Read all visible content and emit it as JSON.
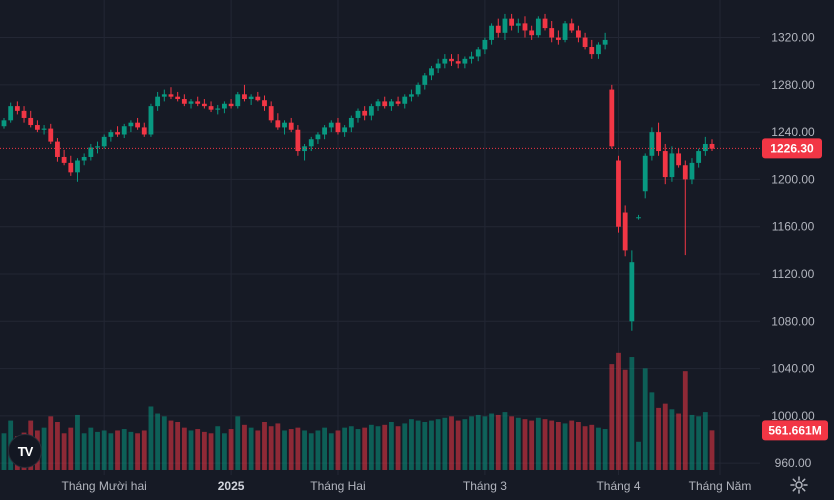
{
  "colors": {
    "background": "#161a25",
    "grid": "#232734",
    "up": "#089981",
    "down": "#f23645",
    "axis_text": "#b2b5be"
  },
  "logo_text": "TV",
  "price_axis": {
    "ticks": [
      960,
      1000,
      1040,
      1080,
      1120,
      1160,
      1200,
      1240,
      1280,
      1320
    ],
    "tick_labels": [
      "960.00",
      "1000.00",
      "1040.00",
      "1080.00",
      "1120.00",
      "1160.00",
      "1200.00",
      "1240.00",
      "1280.00",
      "1320.00"
    ]
  },
  "time_axis": {
    "labels": [
      {
        "text": "Tháng Mười hai",
        "bold": false
      },
      {
        "text": "2025",
        "bold": true
      },
      {
        "text": "Tháng Hai",
        "bold": false
      },
      {
        "text": "Tháng 3",
        "bold": false
      },
      {
        "text": "Tháng 4",
        "bold": false
      },
      {
        "text": "Tháng Năm",
        "bold": false
      }
    ]
  },
  "last_price_label": "1226.30",
  "volume_label": "561.661M",
  "chart_data": {
    "type": "candlestick",
    "ylim": [
      950,
      1345
    ],
    "last_price": 1226.3,
    "last_volume_millions": 561.661,
    "candles": [
      [
        1245,
        1252,
        1243,
        1250,
        520
      ],
      [
        1250,
        1265,
        1248,
        1262,
        700
      ],
      [
        1262,
        1266,
        1255,
        1258,
        480
      ],
      [
        1258,
        1262,
        1248,
        1252,
        530
      ],
      [
        1252,
        1258,
        1244,
        1246,
        700
      ],
      [
        1246,
        1250,
        1240,
        1242,
        560
      ],
      [
        1242,
        1246,
        1238,
        1243,
        600
      ],
      [
        1243,
        1247,
        1230,
        1232,
        760
      ],
      [
        1232,
        1235,
        1215,
        1219,
        680
      ],
      [
        1219,
        1225,
        1212,
        1214,
        520
      ],
      [
        1214,
        1220,
        1203,
        1206,
        600
      ],
      [
        1206,
        1218,
        1198,
        1216,
        780
      ],
      [
        1216,
        1222,
        1212,
        1219,
        520
      ],
      [
        1219,
        1230,
        1216,
        1227,
        600
      ],
      [
        1227,
        1232,
        1222,
        1228,
        540
      ],
      [
        1228,
        1238,
        1226,
        1236,
        560
      ],
      [
        1236,
        1242,
        1232,
        1240,
        520
      ],
      [
        1240,
        1245,
        1236,
        1238,
        560
      ],
      [
        1238,
        1247,
        1235,
        1245,
        580
      ],
      [
        1245,
        1250,
        1240,
        1248,
        540
      ],
      [
        1248,
        1252,
        1242,
        1244,
        520
      ],
      [
        1244,
        1248,
        1236,
        1238,
        560
      ],
      [
        1238,
        1264,
        1236,
        1262,
        900
      ],
      [
        1262,
        1274,
        1258,
        1270,
        800
      ],
      [
        1270,
        1276,
        1266,
        1272,
        760
      ],
      [
        1272,
        1278,
        1268,
        1270,
        700
      ],
      [
        1270,
        1274,
        1266,
        1268,
        680
      ],
      [
        1268,
        1272,
        1262,
        1264,
        600
      ],
      [
        1264,
        1268,
        1260,
        1266,
        560
      ],
      [
        1266,
        1270,
        1262,
        1264,
        580
      ],
      [
        1264,
        1268,
        1260,
        1262,
        540
      ],
      [
        1262,
        1266,
        1257,
        1259,
        520
      ],
      [
        1259,
        1263,
        1255,
        1260,
        620
      ],
      [
        1260,
        1266,
        1256,
        1264,
        520
      ],
      [
        1264,
        1268,
        1260,
        1262,
        580
      ],
      [
        1262,
        1274,
        1260,
        1272,
        760
      ],
      [
        1272,
        1280,
        1266,
        1268,
        640
      ],
      [
        1268,
        1272,
        1263,
        1270,
        600
      ],
      [
        1270,
        1274,
        1266,
        1267,
        560
      ],
      [
        1267,
        1271,
        1258,
        1262,
        680
      ],
      [
        1262,
        1266,
        1248,
        1250,
        620
      ],
      [
        1250,
        1256,
        1242,
        1244,
        660
      ],
      [
        1244,
        1250,
        1238,
        1248,
        560
      ],
      [
        1248,
        1252,
        1240,
        1242,
        580
      ],
      [
        1242,
        1246,
        1220,
        1224,
        600
      ],
      [
        1224,
        1230,
        1216,
        1228,
        560
      ],
      [
        1228,
        1236,
        1224,
        1234,
        520
      ],
      [
        1234,
        1240,
        1230,
        1238,
        560
      ],
      [
        1238,
        1246,
        1234,
        1244,
        600
      ],
      [
        1244,
        1250,
        1240,
        1248,
        520
      ],
      [
        1248,
        1252,
        1238,
        1240,
        560
      ],
      [
        1240,
        1246,
        1236,
        1244,
        600
      ],
      [
        1244,
        1254,
        1240,
        1252,
        620
      ],
      [
        1252,
        1260,
        1248,
        1258,
        580
      ],
      [
        1258,
        1262,
        1250,
        1254,
        600
      ],
      [
        1254,
        1264,
        1250,
        1262,
        640
      ],
      [
        1262,
        1268,
        1258,
        1266,
        620
      ],
      [
        1266,
        1270,
        1260,
        1262,
        640
      ],
      [
        1262,
        1268,
        1258,
        1266,
        680
      ],
      [
        1266,
        1270,
        1262,
        1264,
        620
      ],
      [
        1264,
        1272,
        1260,
        1270,
        660
      ],
      [
        1270,
        1276,
        1266,
        1272,
        720
      ],
      [
        1272,
        1282,
        1270,
        1280,
        700
      ],
      [
        1280,
        1290,
        1276,
        1288,
        680
      ],
      [
        1288,
        1296,
        1284,
        1294,
        700
      ],
      [
        1294,
        1302,
        1290,
        1298,
        720
      ],
      [
        1298,
        1306,
        1294,
        1302,
        740
      ],
      [
        1302,
        1306,
        1296,
        1300,
        760
      ],
      [
        1300,
        1306,
        1294,
        1298,
        700
      ],
      [
        1298,
        1304,
        1294,
        1302,
        720
      ],
      [
        1302,
        1308,
        1298,
        1304,
        760
      ],
      [
        1304,
        1312,
        1300,
        1310,
        780
      ],
      [
        1310,
        1320,
        1306,
        1318,
        760
      ],
      [
        1318,
        1332,
        1314,
        1330,
        800
      ],
      [
        1330,
        1336,
        1320,
        1324,
        780
      ],
      [
        1324,
        1340,
        1318,
        1336,
        820
      ],
      [
        1336,
        1340,
        1326,
        1330,
        760
      ],
      [
        1330,
        1336,
        1324,
        1332,
        740
      ],
      [
        1332,
        1338,
        1320,
        1326,
        720
      ],
      [
        1326,
        1330,
        1318,
        1322,
        700
      ],
      [
        1322,
        1338,
        1320,
        1336,
        740
      ],
      [
        1336,
        1340,
        1326,
        1328,
        720
      ],
      [
        1328,
        1334,
        1316,
        1320,
        700
      ],
      [
        1320,
        1326,
        1314,
        1318,
        680
      ],
      [
        1318,
        1334,
        1316,
        1332,
        660
      ],
      [
        1332,
        1336,
        1324,
        1326,
        700
      ],
      [
        1326,
        1330,
        1316,
        1320,
        680
      ],
      [
        1320,
        1324,
        1310,
        1312,
        620
      ],
      [
        1312,
        1318,
        1302,
        1306,
        640
      ],
      [
        1306,
        1316,
        1302,
        1314,
        600
      ],
      [
        1314,
        1324,
        1310,
        1318,
        580
      ],
      [
        1276,
        1280,
        1226,
        1228,
        1500
      ],
      [
        1216,
        1220,
        1155,
        1160,
        1660
      ],
      [
        1172,
        1178,
        1135,
        1140,
        1420
      ],
      [
        1080,
        1140,
        1072,
        1130,
        1600
      ],
      [
        1168,
        1170,
        1166,
        1168,
        400
      ],
      [
        1190,
        1222,
        1184,
        1220,
        1440
      ],
      [
        1220,
        1244,
        1216,
        1240,
        1100
      ],
      [
        1240,
        1248,
        1220,
        1224,
        880
      ],
      [
        1224,
        1230,
        1196,
        1202,
        940
      ],
      [
        1202,
        1228,
        1198,
        1222,
        860
      ],
      [
        1222,
        1226,
        1210,
        1212,
        800
      ],
      [
        1212,
        1216,
        1136,
        1200,
        1400
      ],
      [
        1200,
        1218,
        1196,
        1214,
        780
      ],
      [
        1214,
        1226,
        1210,
        1224,
        760
      ],
      [
        1224,
        1236,
        1220,
        1230,
        820
      ],
      [
        1230,
        1234,
        1224,
        1226,
        561.661
      ]
    ]
  }
}
